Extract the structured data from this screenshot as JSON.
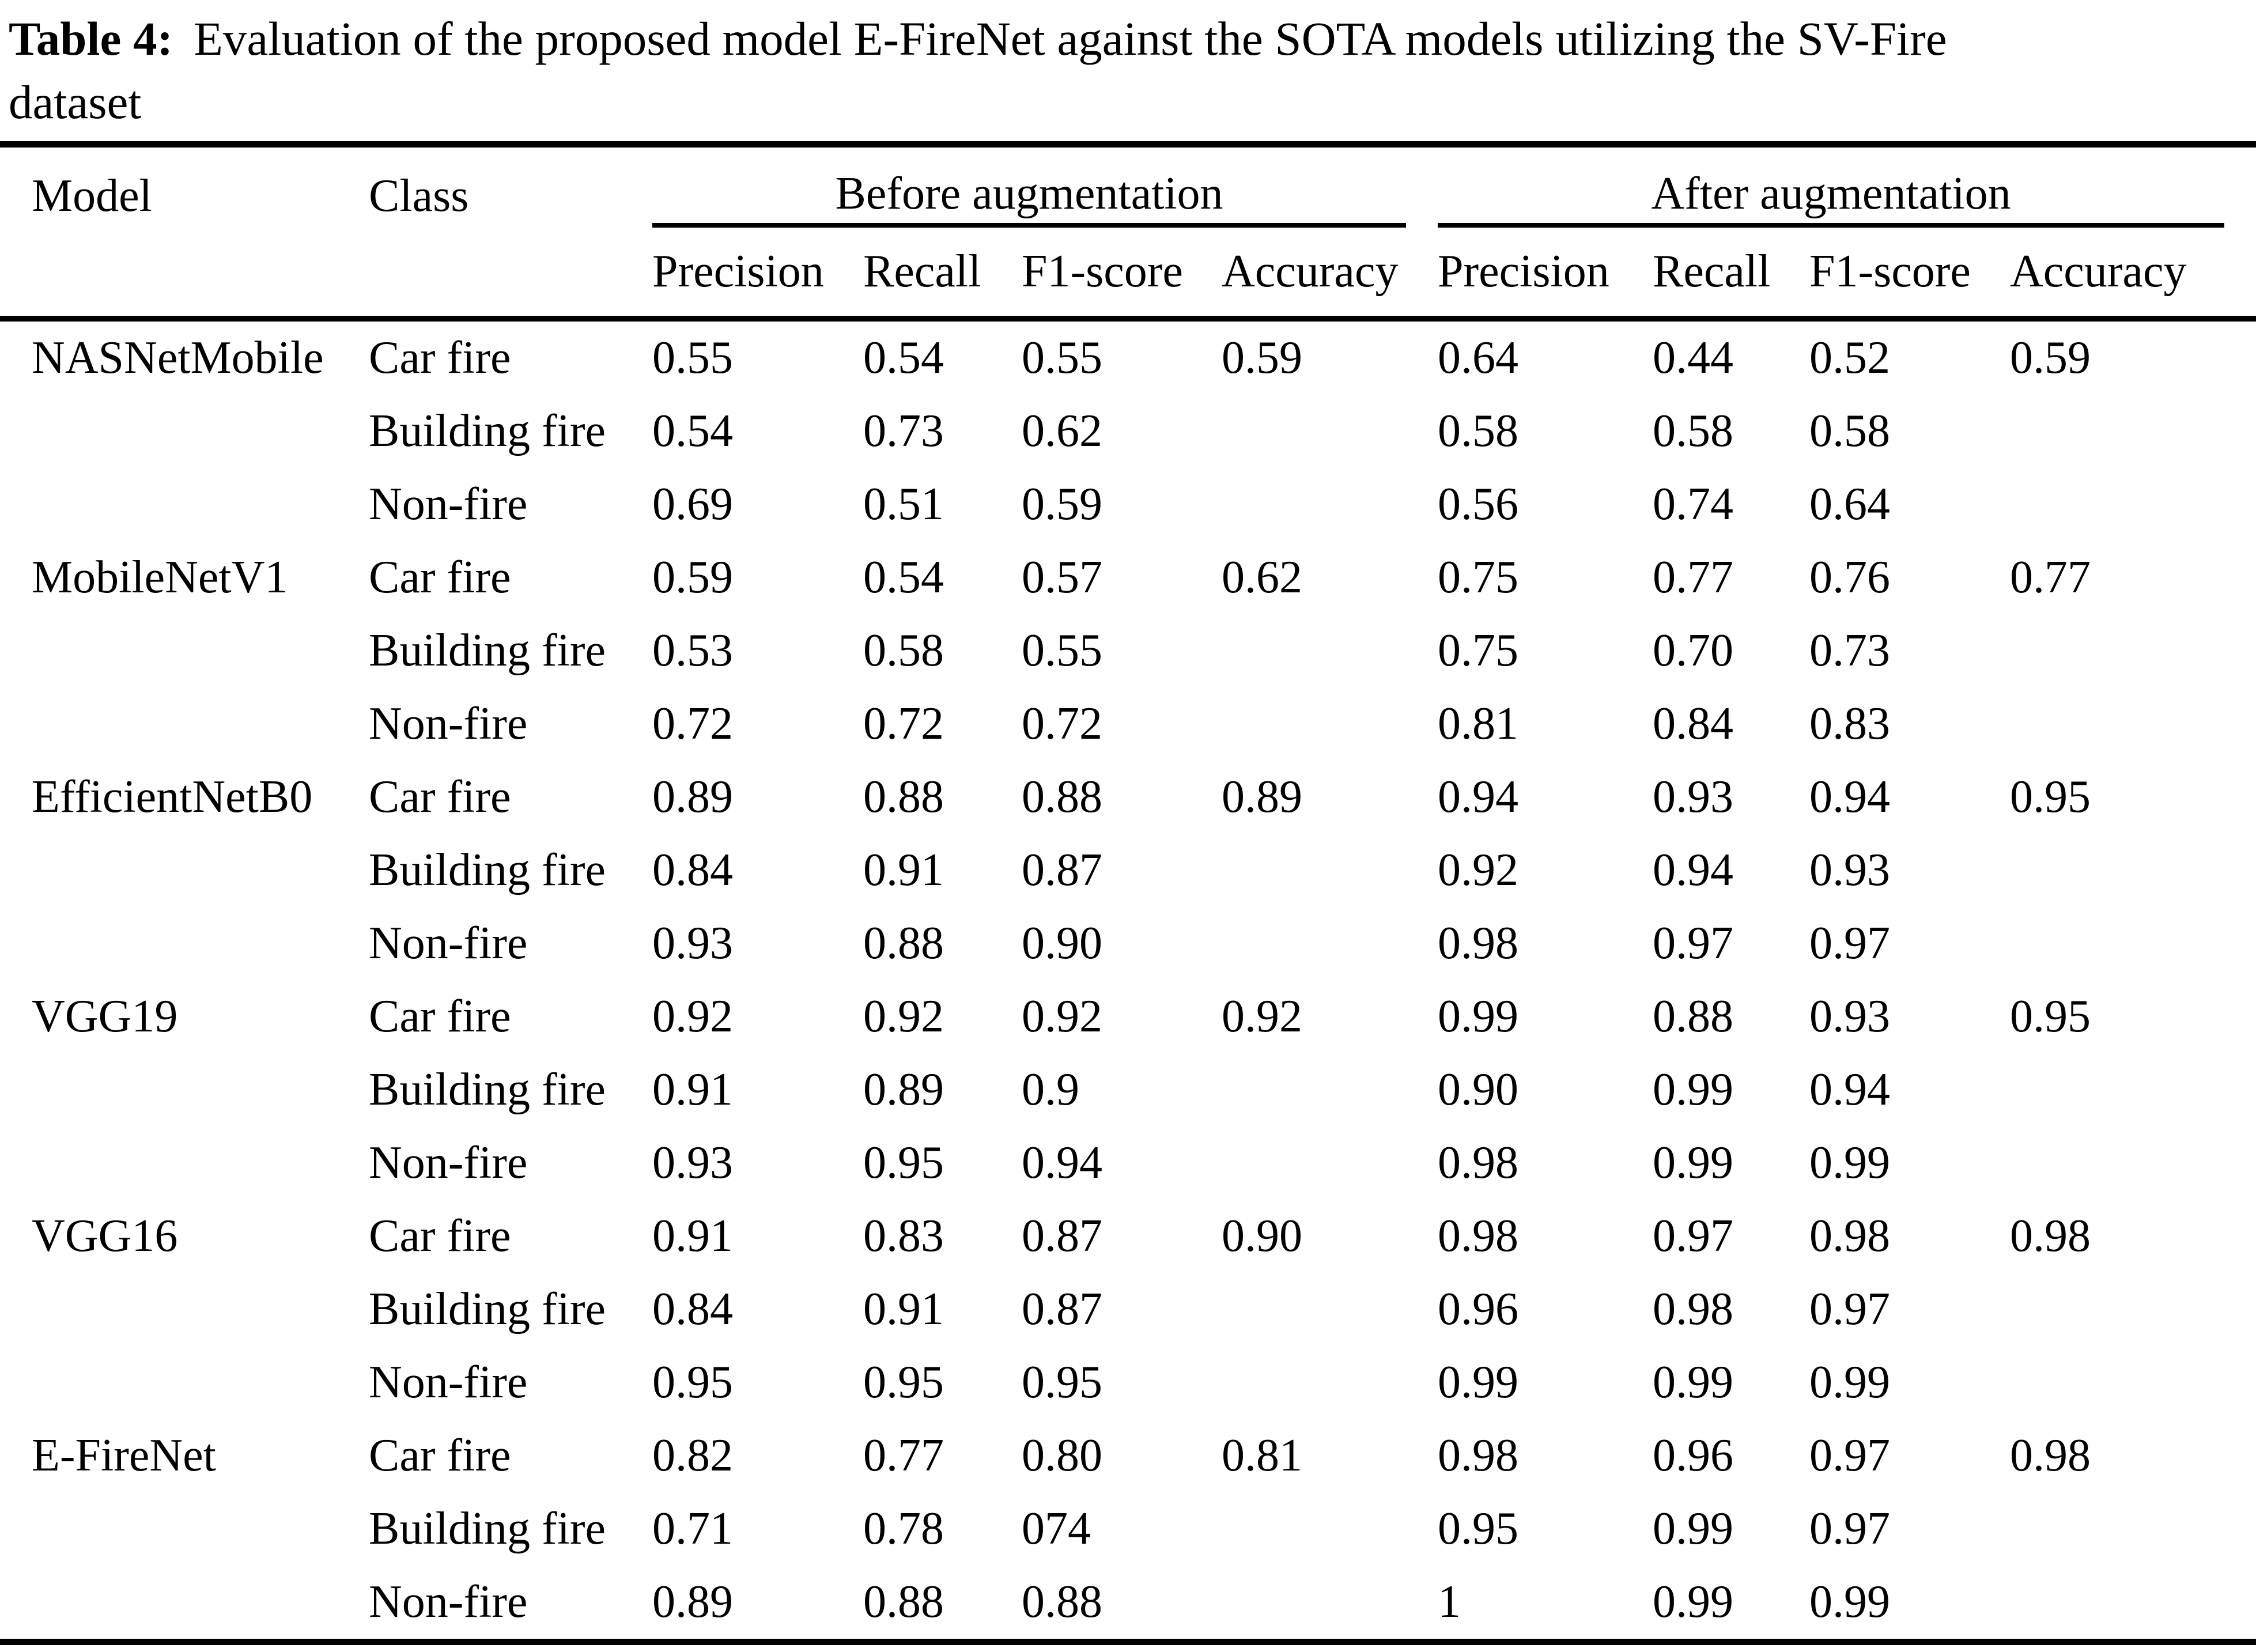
{
  "caption": {
    "label": "Table 4:",
    "line1": "Evaluation of the proposed model E-FireNet against the SOTA models utilizing the SV-Fire",
    "line2": "dataset"
  },
  "colors": {
    "text": "#000000",
    "background": "#ffffff",
    "rule": "#000000"
  },
  "table": {
    "headers": {
      "model": "Model",
      "class": "Class",
      "before_group": "Before augmentation",
      "after_group": "After augmentation",
      "before": {
        "precision": "Precision",
        "recall": "Recall",
        "f1": "F1-score",
        "accuracy": "Accuracy"
      },
      "after": {
        "precision": "Precision",
        "recall": "Recall",
        "f1": "F1-score",
        "accuracy": "Accuracy"
      }
    },
    "rows": [
      {
        "model": "NASNetMobile",
        "class": "Car fire",
        "b_p": "0.55",
        "b_r": "0.54",
        "b_f1": "0.55",
        "b_acc": "0.59",
        "a_p": "0.64",
        "a_r": "0.44",
        "a_f1": "0.52",
        "a_acc": "0.59"
      },
      {
        "model": "",
        "class": "Building fire",
        "b_p": "0.54",
        "b_r": "0.73",
        "b_f1": "0.62",
        "b_acc": "",
        "a_p": "0.58",
        "a_r": "0.58",
        "a_f1": "0.58",
        "a_acc": ""
      },
      {
        "model": "",
        "class": "Non-fire",
        "b_p": "0.69",
        "b_r": "0.51",
        "b_f1": "0.59",
        "b_acc": "",
        "a_p": "0.56",
        "a_r": "0.74",
        "a_f1": "0.64",
        "a_acc": ""
      },
      {
        "model": "MobileNetV1",
        "class": "Car fire",
        "b_p": "0.59",
        "b_r": "0.54",
        "b_f1": "0.57",
        "b_acc": "0.62",
        "a_p": "0.75",
        "a_r": "0.77",
        "a_f1": "0.76",
        "a_acc": "0.77"
      },
      {
        "model": "",
        "class": "Building fire",
        "b_p": "0.53",
        "b_r": "0.58",
        "b_f1": "0.55",
        "b_acc": "",
        "a_p": "0.75",
        "a_r": "0.70",
        "a_f1": "0.73",
        "a_acc": ""
      },
      {
        "model": "",
        "class": "Non-fire",
        "b_p": "0.72",
        "b_r": "0.72",
        "b_f1": "0.72",
        "b_acc": "",
        "a_p": "0.81",
        "a_r": "0.84",
        "a_f1": "0.83",
        "a_acc": ""
      },
      {
        "model": "EfficientNetB0",
        "class": "Car fire",
        "b_p": "0.89",
        "b_r": "0.88",
        "b_f1": "0.88",
        "b_acc": "0.89",
        "a_p": "0.94",
        "a_r": "0.93",
        "a_f1": "0.94",
        "a_acc": "0.95"
      },
      {
        "model": "",
        "class": "Building fire",
        "b_p": "0.84",
        "b_r": "0.91",
        "b_f1": "0.87",
        "b_acc": "",
        "a_p": "0.92",
        "a_r": "0.94",
        "a_f1": "0.93",
        "a_acc": ""
      },
      {
        "model": "",
        "class": "Non-fire",
        "b_p": "0.93",
        "b_r": "0.88",
        "b_f1": "0.90",
        "b_acc": "",
        "a_p": "0.98",
        "a_r": "0.97",
        "a_f1": "0.97",
        "a_acc": ""
      },
      {
        "model": "VGG19",
        "class": "Car fire",
        "b_p": "0.92",
        "b_r": "0.92",
        "b_f1": "0.92",
        "b_acc": "0.92",
        "a_p": "0.99",
        "a_r": "0.88",
        "a_f1": "0.93",
        "a_acc": "0.95"
      },
      {
        "model": "",
        "class": "Building fire",
        "b_p": "0.91",
        "b_r": "0.89",
        "b_f1": "0.9",
        "b_acc": "",
        "a_p": "0.90",
        "a_r": "0.99",
        "a_f1": "0.94",
        "a_acc": ""
      },
      {
        "model": "",
        "class": "Non-fire",
        "b_p": "0.93",
        "b_r": "0.95",
        "b_f1": "0.94",
        "b_acc": "",
        "a_p": "0.98",
        "a_r": "0.99",
        "a_f1": "0.99",
        "a_acc": ""
      },
      {
        "model": "VGG16",
        "class": "Car fire",
        "b_p": "0.91",
        "b_r": "0.83",
        "b_f1": "0.87",
        "b_acc": "0.90",
        "a_p": "0.98",
        "a_r": "0.97",
        "a_f1": "0.98",
        "a_acc": "0.98"
      },
      {
        "model": "",
        "class": "Building fire",
        "b_p": "0.84",
        "b_r": "0.91",
        "b_f1": "0.87",
        "b_acc": "",
        "a_p": "0.96",
        "a_r": "0.98",
        "a_f1": "0.97",
        "a_acc": ""
      },
      {
        "model": "",
        "class": "Non-fire",
        "b_p": "0.95",
        "b_r": "0.95",
        "b_f1": "0.95",
        "b_acc": "",
        "a_p": "0.99",
        "a_r": "0.99",
        "a_f1": "0.99",
        "a_acc": ""
      },
      {
        "model": "E-FireNet",
        "class": "Car fire",
        "b_p": "0.82",
        "b_r": "0.77",
        "b_f1": "0.80",
        "b_acc": "0.81",
        "a_p": "0.98",
        "a_r": "0.96",
        "a_f1": "0.97",
        "a_acc": "0.98"
      },
      {
        "model": "",
        "class": "Building fire",
        "b_p": "0.71",
        "b_r": "0.78",
        "b_f1": "074",
        "b_acc": "",
        "a_p": "0.95",
        "a_r": "0.99",
        "a_f1": "0.97",
        "a_acc": ""
      },
      {
        "model": "",
        "class": "Non-fire",
        "b_p": "0.89",
        "b_r": "0.88",
        "b_f1": "0.88",
        "b_acc": "",
        "a_p": "1",
        "a_r": "0.99",
        "a_f1": "0.99",
        "a_acc": ""
      }
    ]
  }
}
